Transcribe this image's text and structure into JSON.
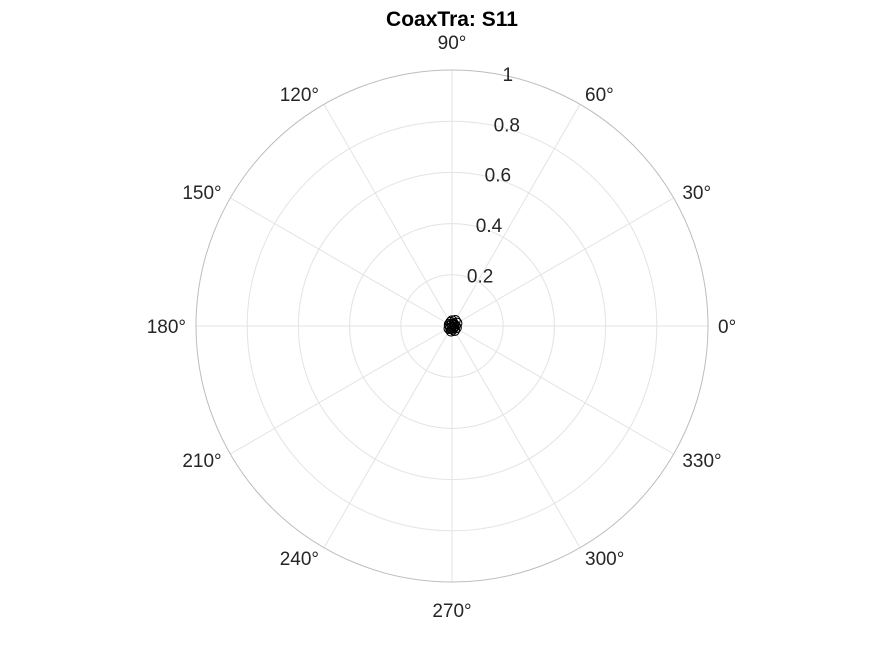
{
  "chart_data": {
    "type": "polar-line",
    "title": "CoaxTra: S11",
    "radial_ticks": [
      0.2,
      0.4,
      0.6,
      0.8,
      1
    ],
    "radial_tick_labels": [
      "0.2",
      "0.4",
      "0.6",
      "0.8",
      "1"
    ],
    "rlim": [
      0,
      1
    ],
    "angle_ticks": [
      0,
      30,
      60,
      90,
      120,
      150,
      180,
      210,
      240,
      270,
      300,
      330
    ],
    "angle_tick_labels": [
      "0°",
      "30°",
      "60°",
      "90°",
      "120°",
      "150°",
      "180°",
      "210°",
      "240°",
      "270°",
      "300°",
      "330°"
    ],
    "grid": true,
    "series": [
      {
        "marker": "circle",
        "color": "#000000",
        "points": [
          {
            "angle": 90,
            "r": 0.02
          },
          {
            "angle": 60,
            "r": 0.025
          },
          {
            "angle": 30,
            "r": 0.022
          },
          {
            "angle": 0,
            "r": 0.012
          },
          {
            "angle": -20,
            "r": 0.018
          },
          {
            "angle": -60,
            "r": 0.02
          },
          {
            "angle": -100,
            "r": 0.02
          },
          {
            "angle": -140,
            "r": 0.015
          },
          {
            "angle": 180,
            "r": 0.008
          },
          {
            "angle": 150,
            "r": 0.012
          },
          {
            "angle": 110,
            "r": 0.015
          },
          {
            "angle": 80,
            "r": 0.008
          },
          {
            "angle": 40,
            "r": 0.01
          },
          {
            "angle": -45,
            "r": 0.008
          },
          {
            "angle": -80,
            "r": 0.012
          },
          {
            "angle": -120,
            "r": 0.01
          }
        ]
      }
    ]
  }
}
